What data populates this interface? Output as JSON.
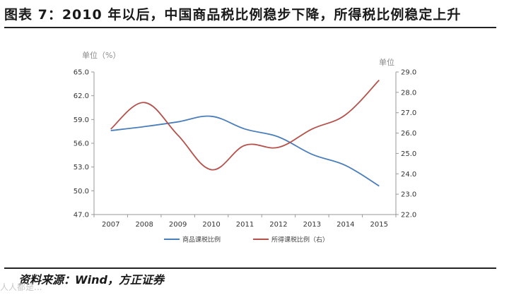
{
  "title": "图表 7：2010 年以后，中国商品税比例稳步下降，所得税比例稳定上升",
  "source": "资料来源：Wind，方正证券",
  "watermark": "人人都是...",
  "chart_data": {
    "type": "line",
    "title": "",
    "left_axis_unit": "单位（%）",
    "right_axis_unit": "单位",
    "categories": [
      "2007",
      "2008",
      "2009",
      "2010",
      "2011",
      "2012",
      "2013",
      "2014",
      "2015"
    ],
    "left_axis": {
      "ylim": [
        47.0,
        65.0
      ],
      "ticks": [
        "47.0",
        "50.0",
        "53.0",
        "56.0",
        "59.0",
        "62.0",
        "65.0"
      ]
    },
    "right_axis": {
      "ylim": [
        22.0,
        29.0
      ],
      "ticks": [
        "22.0",
        "23.0",
        "24.0",
        "25.0",
        "26.0",
        "27.0",
        "28.0",
        "29.0"
      ]
    },
    "grid": false,
    "legend_position": "bottom",
    "series": [
      {
        "name": "商品课税比例",
        "axis": "left",
        "color": "#4a7ebb",
        "values": [
          57.6,
          58.1,
          58.7,
          59.4,
          57.8,
          56.8,
          54.6,
          53.2,
          50.6
        ]
      },
      {
        "name": "所得课税比例（右）",
        "axis": "right",
        "color": "#b5514b",
        "values": [
          26.2,
          27.5,
          25.9,
          24.2,
          25.4,
          25.3,
          26.2,
          26.9,
          28.6
        ]
      }
    ]
  }
}
